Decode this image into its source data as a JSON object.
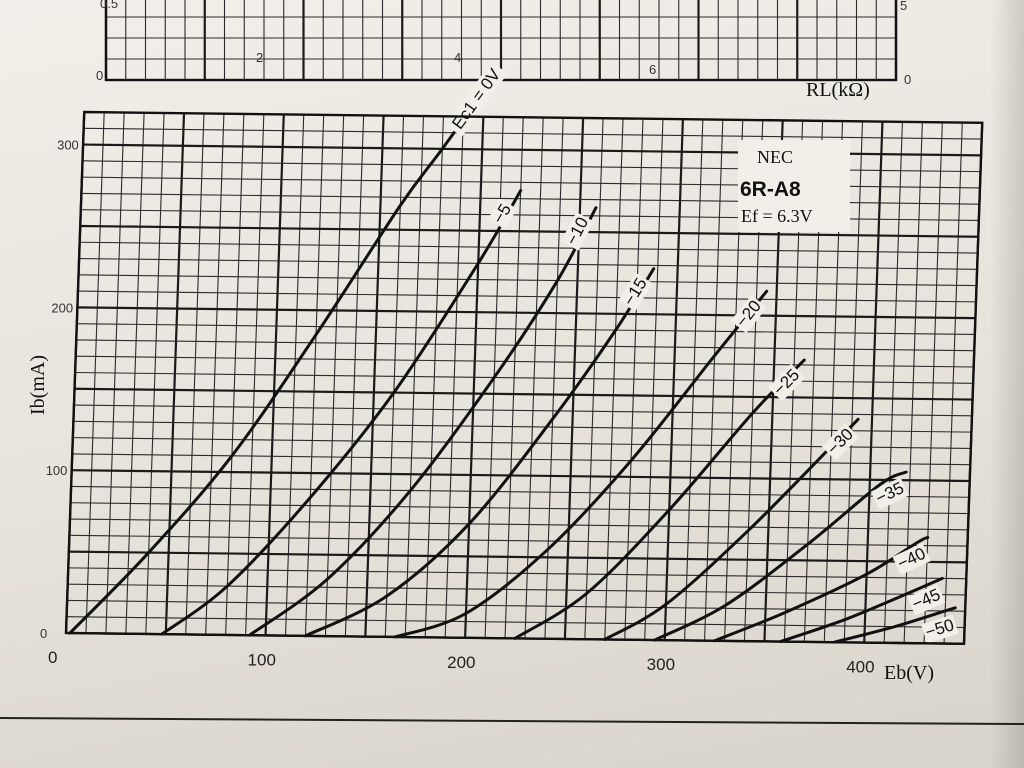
{
  "chart_data": {
    "type": "line",
    "legend": {
      "manufacturer": "NEC",
      "tube": "6R-A8",
      "heater": "Ef = 6.3V"
    },
    "xlabel": "Eb(V)",
    "ylabel": "Ib(mA)",
    "xlim": [
      0,
      450
    ],
    "ylim": [
      0,
      300
    ],
    "x_ticks": [
      "0",
      "100",
      "200",
      "300",
      "400"
    ],
    "y_ticks": [
      "0",
      "100",
      "200",
      "300"
    ],
    "upper_axis": {
      "xlabel": "RL(kΩ)",
      "x_ticks": [
        "0",
        "2",
        "4",
        "6"
      ],
      "right_ticks": [
        "0",
        "5"
      ],
      "left_partial_label": "0.5"
    },
    "series": [
      {
        "name": "Ec1 = 0V",
        "label": "Ec1 = 0V",
        "x": [
          2,
          40,
          80,
          120,
          160,
          180,
          205
        ],
        "y": [
          0,
          50,
          110,
          185,
          265,
          300,
          345
        ]
      },
      {
        "name": "−5",
        "label": "−5",
        "x": [
          48,
          80,
          120,
          160,
          200,
          220
        ],
        "y": [
          0,
          30,
          85,
          150,
          230,
          275
        ]
      },
      {
        "name": "−10",
        "label": "−10",
        "x": [
          92,
          130,
          170,
          210,
          240,
          258
        ],
        "y": [
          0,
          35,
          90,
          160,
          220,
          265
        ]
      },
      {
        "name": "−15",
        "label": "−15",
        "x": [
          120,
          160,
          200,
          240,
          270,
          288
        ],
        "y": [
          0,
          25,
          70,
          135,
          190,
          228
        ]
      },
      {
        "name": "−20",
        "label": "−20",
        "x": [
          165,
          200,
          240,
          280,
          320,
          345
        ],
        "y": [
          0,
          15,
          55,
          110,
          175,
          215
        ]
      },
      {
        "name": "−25",
        "label": "−25",
        "x": [
          225,
          260,
          300,
          340,
          365
        ],
        "y": [
          0,
          28,
          80,
          140,
          173
        ]
      },
      {
        "name": "−30",
        "label": "−30",
        "x": [
          270,
          300,
          340,
          380,
          393
        ],
        "y": [
          0,
          22,
          68,
          120,
          137
        ]
      },
      {
        "name": "−35",
        "label": "−35",
        "x": [
          295,
          330,
          370,
          405,
          418
        ],
        "y": [
          0,
          22,
          60,
          97,
          105
        ]
      },
      {
        "name": "−40",
        "label": "−40",
        "x": [
          325,
          360,
          400,
          425,
          430
        ],
        "y": [
          0,
          18,
          42,
          62,
          65
        ]
      },
      {
        "name": "−45",
        "label": "−45",
        "x": [
          358,
          390,
          420,
          438
        ],
        "y": [
          0,
          14,
          30,
          40
        ]
      },
      {
        "name": "−50",
        "label": "−50",
        "x": [
          385,
          415,
          440,
          445
        ],
        "y": [
          0,
          10,
          20,
          22
        ]
      }
    ]
  }
}
